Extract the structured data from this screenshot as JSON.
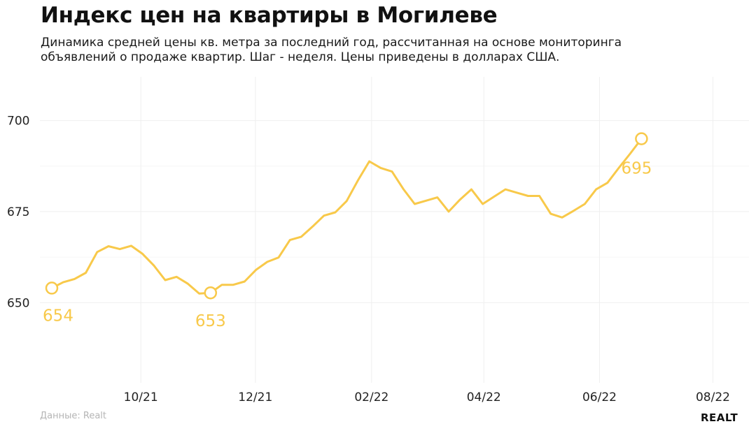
{
  "title": "Индекс цен на квартиры в Могилеве",
  "subtitle_lines": [
    "Динамика средней цены кв. метра за последний год, рассчитанная на основе мониторинга",
    "объявлений о продаже квартир. Шаг - неделя. Цены приведены в долларах США."
  ],
  "source": "Данные: Realt",
  "brand": "REALT",
  "colors": {
    "line": "#f8c94a",
    "grid": "#efefef",
    "text": "#222222"
  },
  "chart_data": {
    "type": "line",
    "title": "Индекс цен на квартиры в Могилеве",
    "xlabel": "",
    "ylabel": "",
    "ylim": [
      628,
      712
    ],
    "yticks": [
      650,
      675,
      700
    ],
    "xticks": [
      "10/21",
      "12/21",
      "02/22",
      "04/22",
      "06/22",
      "08/22"
    ],
    "grid": true,
    "series": [
      {
        "values": [
          654,
          655.6,
          656.5,
          658.2,
          663.9,
          665.5,
          664.7,
          665.6,
          663.4,
          660.2,
          656.2,
          657.1,
          655.2,
          652.5,
          652.7,
          654.9,
          654.9,
          655.8,
          659,
          661.2,
          662.4,
          667.2,
          668.1,
          670.9,
          673.9,
          674.8,
          677.9,
          683.6,
          688.8,
          687,
          686,
          681.2,
          677.1,
          678,
          678.9,
          675,
          678.3,
          681.1,
          677.1,
          679.1,
          681.1,
          680.2,
          679.3,
          679.3,
          674.4,
          673.4,
          675.2,
          677.1,
          681.1,
          682.9,
          687,
          690.9,
          695
        ]
      }
    ],
    "annotations": [
      {
        "label": "654",
        "index": 0,
        "value": 654
      },
      {
        "label": "653",
        "index": 14,
        "value": 653
      },
      {
        "label": "695",
        "index": 52,
        "value": 695
      }
    ]
  }
}
